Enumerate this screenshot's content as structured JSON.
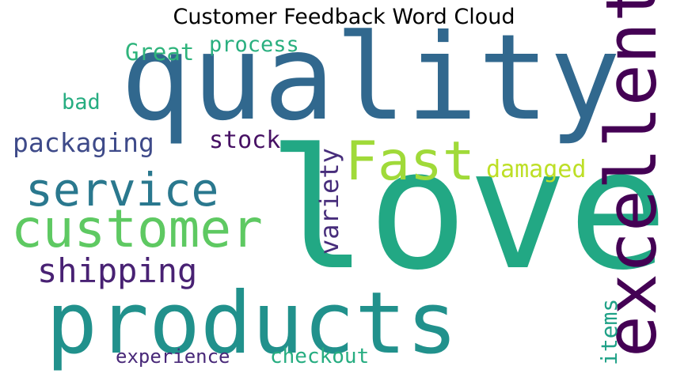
{
  "chart_data": {
    "type": "wordcloud",
    "title": "Customer Feedback Word Cloud",
    "words": [
      {
        "text": "love",
        "color": "#22a884"
      },
      {
        "text": "quality",
        "color": "#31688e"
      },
      {
        "text": "products",
        "color": "#21918c"
      },
      {
        "text": "excellent",
        "color": "#440154"
      },
      {
        "text": "customer",
        "color": "#5ec962"
      },
      {
        "text": "service",
        "color": "#2a788e"
      },
      {
        "text": "Fast",
        "color": "#a0da39"
      },
      {
        "text": "shipping",
        "color": "#482173"
      },
      {
        "text": "packaging",
        "color": "#3e4a89"
      },
      {
        "text": "damaged",
        "color": "#bddf26"
      },
      {
        "text": "variety",
        "color": "#472d7b"
      },
      {
        "text": "stock",
        "color": "#471164"
      },
      {
        "text": "Great",
        "color": "#2fb47c"
      },
      {
        "text": "process",
        "color": "#29af7f"
      },
      {
        "text": "bad",
        "color": "#26ad81"
      },
      {
        "text": "items",
        "color": "#1fa187"
      },
      {
        "text": "checkout",
        "color": "#27ad81"
      },
      {
        "text": "experience",
        "color": "#482878"
      }
    ]
  }
}
